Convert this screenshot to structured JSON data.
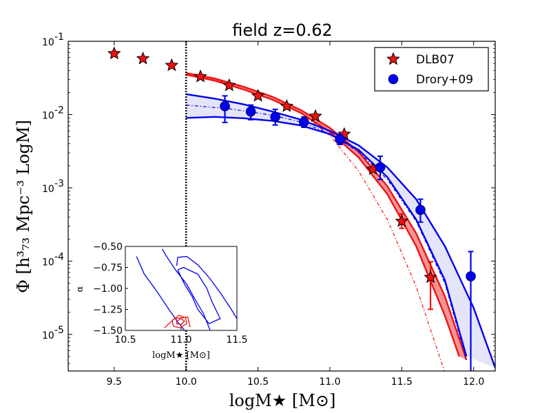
{
  "chart_data": {
    "type": "scatter",
    "title": "field z=0.62",
    "xlabel": "logM★    [M⊙]",
    "ylabel": "Φ   [h³₇₃ Mpc⁻³ LogM]",
    "xlim": [
      9.18,
      12.15
    ],
    "ylim_log10": [
      -5.5,
      -1.0
    ],
    "x_ticks": [
      9.5,
      10.0,
      10.5,
      11.0,
      11.5,
      12.0
    ],
    "x_tick_labels": [
      "9.5",
      "10.0",
      "10.5",
      "11.0",
      "11.5",
      "12.0"
    ],
    "y_ticks_log10": [
      -1,
      -2,
      -3,
      -4,
      -5
    ],
    "y_tick_labels": [
      {
        "base": "10",
        "exp": "-1"
      },
      {
        "base": "10",
        "exp": "-2"
      },
      {
        "base": "10",
        "exp": "-3"
      },
      {
        "base": "10",
        "exp": "-4"
      },
      {
        "base": "10",
        "exp": "-5"
      }
    ],
    "completeness_limit_x": 10.0,
    "legend": [
      {
        "label": "DLB07",
        "marker": "star",
        "color": "#ee1111"
      },
      {
        "label": "Drory+09",
        "marker": "circle",
        "color": "#0000ee"
      }
    ],
    "series": [
      {
        "name": "DLB07",
        "marker": "star",
        "color": "#ee1111",
        "points": [
          {
            "x": 9.5,
            "y": 0.068
          },
          {
            "x": 9.7,
            "y": 0.058
          },
          {
            "x": 9.9,
            "y": 0.047
          },
          {
            "x": 10.1,
            "y": 0.033
          },
          {
            "x": 10.3,
            "y": 0.025
          },
          {
            "x": 10.5,
            "y": 0.018
          },
          {
            "x": 10.7,
            "y": 0.013
          },
          {
            "x": 10.9,
            "y": 0.0095
          },
          {
            "x": 11.1,
            "y": 0.0054
          },
          {
            "x": 11.3,
            "y": 0.0018
          },
          {
            "x": 11.5,
            "y": 0.00035,
            "err_lo": 0.00028,
            "err_hi": 0.00044
          },
          {
            "x": 11.7,
            "y": 6e-05,
            "err_lo": 2.2e-05,
            "err_hi": 9.8e-05
          }
        ]
      },
      {
        "name": "Drory+09",
        "marker": "circle",
        "color": "#0000ee",
        "points": [
          {
            "x": 10.27,
            "y": 0.013,
            "err_lo": 0.0078,
            "err_hi": 0.018
          },
          {
            "x": 10.45,
            "y": 0.011,
            "err_lo": 0.0085,
            "err_hi": 0.0135
          },
          {
            "x": 10.62,
            "y": 0.0093,
            "err_lo": 0.0072,
            "err_hi": 0.0118
          },
          {
            "x": 10.82,
            "y": 0.0079,
            "err_lo": 0.0067,
            "err_hi": 0.0093
          },
          {
            "x": 11.07,
            "y": 0.0046,
            "err_lo": 0.0039,
            "err_hi": 0.0054
          },
          {
            "x": 11.35,
            "y": 0.0019,
            "err_lo": 0.0013,
            "err_hi": 0.0027
          },
          {
            "x": 11.63,
            "y": 0.0005,
            "err_lo": 0.00034,
            "err_hi": 0.0007
          },
          {
            "x": 11.98,
            "y": 6.2e-05,
            "err_lo": 2.5e-06,
            "err_hi": 0.000135
          }
        ]
      }
    ],
    "curves": [
      {
        "name": "DLB07 fit upper",
        "style": "solid",
        "color": "#ee1111",
        "points": [
          [
            10.0,
            0.037
          ],
          [
            10.2,
            0.031
          ],
          [
            10.4,
            0.024
          ],
          [
            10.6,
            0.0175
          ],
          [
            10.8,
            0.0115
          ],
          [
            11.0,
            0.0066
          ],
          [
            11.2,
            0.0031
          ],
          [
            11.4,
            0.00105
          ],
          [
            11.6,
            0.00024
          ],
          [
            11.8,
            3.3e-05
          ],
          [
            11.95,
            4.5e-06
          ]
        ]
      },
      {
        "name": "DLB07 fit lower",
        "style": "solid",
        "color": "#ee1111",
        "points": [
          [
            10.0,
            0.035
          ],
          [
            10.2,
            0.029
          ],
          [
            10.4,
            0.022
          ],
          [
            10.6,
            0.016
          ],
          [
            10.8,
            0.0105
          ],
          [
            11.0,
            0.0058
          ],
          [
            11.2,
            0.0026
          ],
          [
            11.4,
            0.00082
          ],
          [
            11.6,
            0.00016
          ],
          [
            11.8,
            1.8e-05
          ],
          [
            11.9,
            5e-06
          ]
        ]
      },
      {
        "name": "DLB07 alt model",
        "style": "dashdot",
        "color": "#ee1111",
        "points": [
          [
            10.0,
            0.035
          ],
          [
            10.3,
            0.027
          ],
          [
            10.6,
            0.0175
          ],
          [
            10.8,
            0.0105
          ],
          [
            11.0,
            0.0052
          ],
          [
            11.2,
            0.0017
          ],
          [
            11.4,
            0.00037
          ],
          [
            11.6,
            4.5e-05
          ],
          [
            11.8,
            3e-06
          ]
        ]
      },
      {
        "name": "Drory+09 fit upper",
        "style": "solid",
        "color": "#0000ee",
        "points": [
          [
            10.0,
            0.019
          ],
          [
            10.2,
            0.0165
          ],
          [
            10.4,
            0.0138
          ],
          [
            10.6,
            0.011
          ],
          [
            10.8,
            0.0085
          ],
          [
            11.0,
            0.006
          ],
          [
            11.2,
            0.0038
          ],
          [
            11.4,
            0.0019
          ],
          [
            11.6,
            0.0007
          ],
          [
            11.8,
            0.00016
          ],
          [
            12.0,
            2.3e-05
          ],
          [
            12.15,
            3.5e-06
          ]
        ]
      },
      {
        "name": "Drory+09 fit lower",
        "style": "solid",
        "color": "#0000ee",
        "points": [
          [
            10.0,
            0.009
          ],
          [
            10.2,
            0.0093
          ],
          [
            10.4,
            0.0089
          ],
          [
            10.6,
            0.0082
          ],
          [
            10.8,
            0.0071
          ],
          [
            11.0,
            0.0054
          ],
          [
            11.2,
            0.0033
          ],
          [
            11.4,
            0.0014
          ],
          [
            11.6,
            0.00037
          ],
          [
            11.8,
            5.5e-05
          ],
          [
            11.95,
            5e-06
          ]
        ]
      },
      {
        "name": "Drory+09 alt model",
        "style": "dashdot",
        "color": "#0000ee",
        "points": [
          [
            10.0,
            0.0135
          ],
          [
            10.3,
            0.012
          ],
          [
            10.6,
            0.0098
          ],
          [
            10.8,
            0.0079
          ],
          [
            11.0,
            0.0055
          ],
          [
            11.2,
            0.0031
          ],
          [
            11.4,
            0.0013
          ],
          [
            11.6,
            0.00035
          ],
          [
            11.8,
            5e-05
          ],
          [
            11.95,
            4.5e-06
          ]
        ]
      }
    ],
    "inset": {
      "xlabel": "logM★    [M⊙]",
      "ylabel": "α",
      "xlim": [
        10.5,
        11.5
      ],
      "ylim": [
        -1.5,
        -0.5
      ],
      "x_ticks": [
        10.5,
        11.0,
        11.5
      ],
      "x_tick_labels": [
        "10.5",
        "11.0",
        "11.5"
      ],
      "y_ticks": [
        -0.5,
        -0.75,
        -1.0,
        -1.25,
        -1.5
      ],
      "y_tick_labels": [
        "−0.50",
        "−0.75",
        "−1.00",
        "−1.25",
        "−1.50"
      ],
      "contours": [
        {
          "color": "#0000ee",
          "points": [
            [
              10.83,
              -0.53
            ],
            [
              10.87,
              -0.62
            ],
            [
              10.95,
              -0.78
            ],
            [
              11.05,
              -0.95
            ],
            [
              11.12,
              -1.12
            ],
            [
              11.2,
              -1.3
            ],
            [
              11.26,
              -1.5
            ]
          ]
        },
        {
          "color": "#0000ee",
          "points": [
            [
              10.97,
              -0.78
            ],
            [
              11.03,
              -0.95
            ],
            [
              11.1,
              -1.1
            ],
            [
              11.15,
              -1.25
            ],
            [
              11.25,
              -1.42
            ],
            [
              11.35,
              -1.36
            ],
            [
              11.28,
              -1.17
            ],
            [
              11.23,
              -1.0
            ],
            [
              11.15,
              -0.83
            ],
            [
              11.02,
              -0.75
            ],
            [
              10.97,
              -0.78
            ]
          ]
        },
        {
          "color": "#0000ee",
          "points": [
            [
              10.96,
              -0.73
            ],
            [
              10.97,
              -0.63
            ],
            [
              11.05,
              -0.62
            ],
            [
              11.15,
              -0.72
            ],
            [
              11.25,
              -0.87
            ],
            [
              11.35,
              -1.05
            ],
            [
              11.45,
              -1.25
            ],
            [
              11.5,
              -1.36
            ]
          ]
        },
        {
          "color": "#0000ee",
          "points": [
            [
              10.6,
              -0.62
            ],
            [
              10.67,
              -0.83
            ],
            [
              10.78,
              -1.03
            ],
            [
              10.88,
              -1.23
            ],
            [
              10.97,
              -1.4
            ],
            [
              11.03,
              -1.5
            ]
          ]
        },
        {
          "color": "#ee1111",
          "points": [
            [
              10.92,
              -1.38
            ],
            [
              10.98,
              -1.32
            ],
            [
              11.04,
              -1.35
            ],
            [
              11.05,
              -1.42
            ],
            [
              10.99,
              -1.47
            ],
            [
              10.93,
              -1.45
            ],
            [
              10.92,
              -1.38
            ]
          ]
        },
        {
          "color": "#ee1111",
          "points": [
            [
              10.96,
              -1.39
            ],
            [
              11.0,
              -1.36
            ],
            [
              11.03,
              -1.39
            ],
            [
              11.0,
              -1.43
            ],
            [
              10.96,
              -1.42
            ],
            [
              10.96,
              -1.39
            ]
          ]
        },
        {
          "color": "#ee1111",
          "points": [
            [
              10.85,
              -1.47
            ],
            [
              10.94,
              -1.36
            ],
            [
              11.06,
              -1.34
            ],
            [
              11.08,
              -1.46
            ]
          ]
        }
      ]
    }
  }
}
